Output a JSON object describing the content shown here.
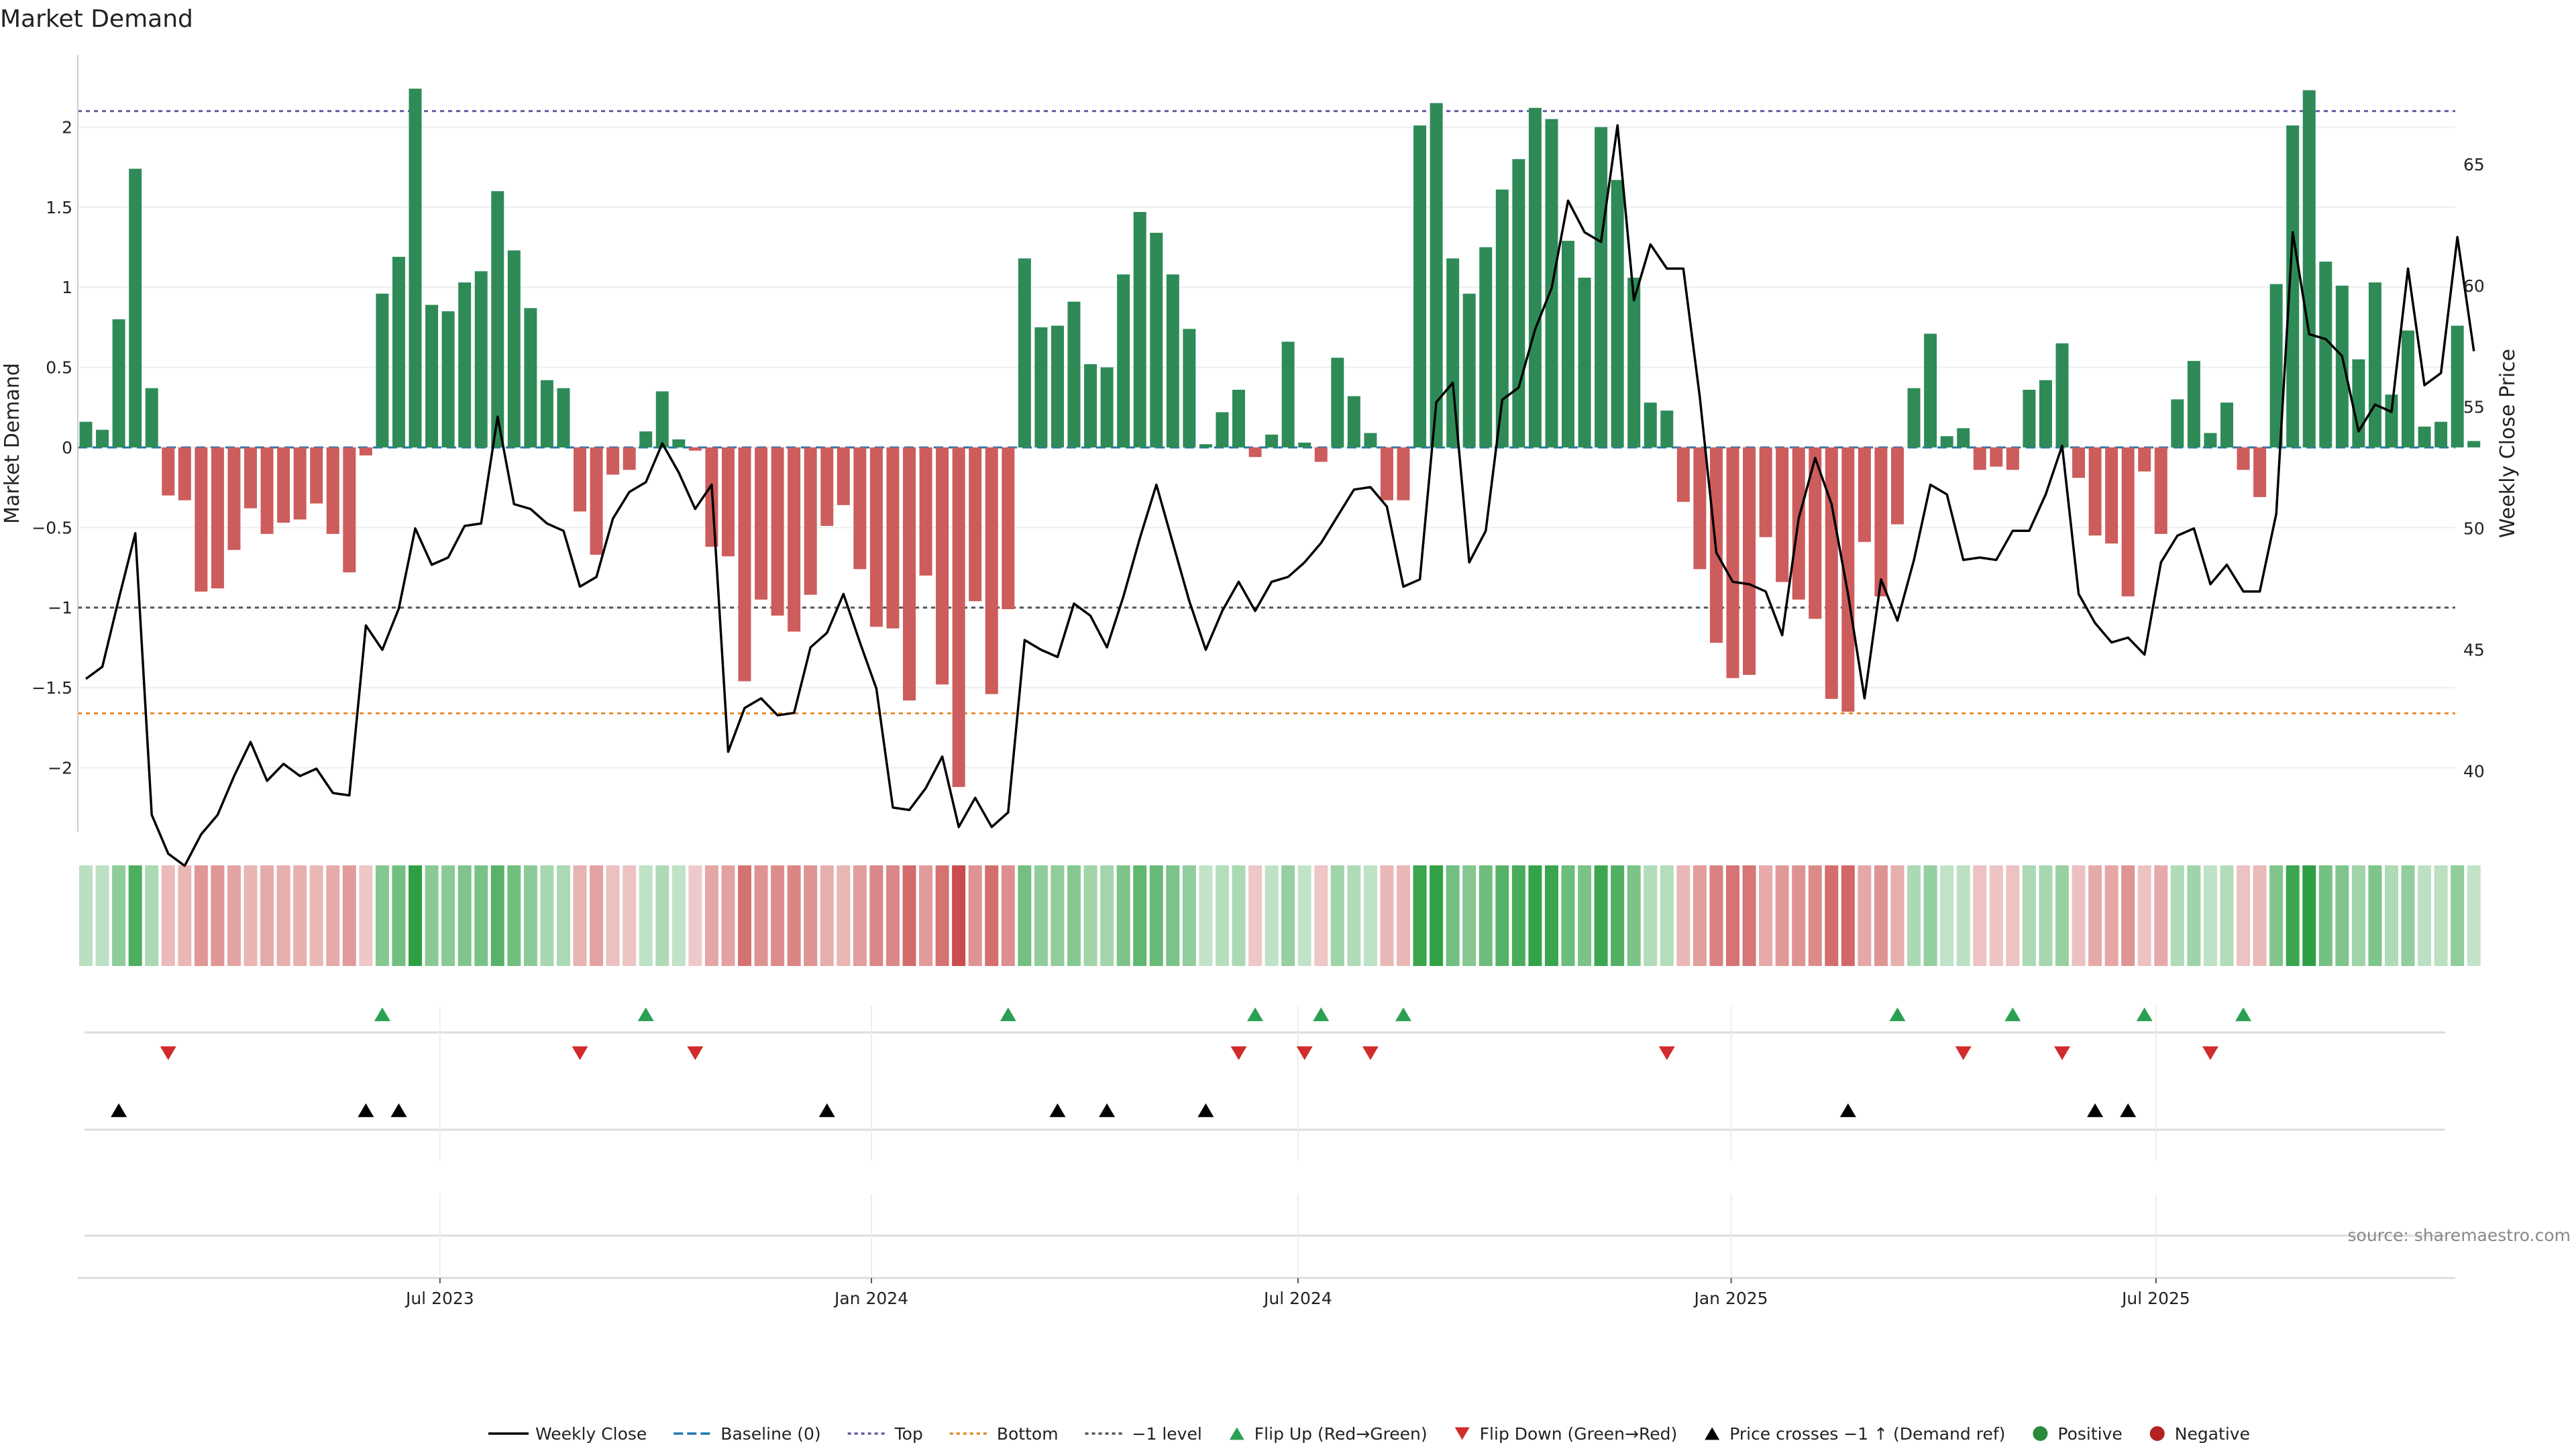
{
  "chart_data": {
    "type": "bar",
    "title": "Market Demand",
    "ylabel_left": "Market Demand",
    "ylabel_right": "Weekly Close Price",
    "source": "source: sharemaestro.com",
    "ylim_left": [
      -2.4,
      2.45
    ],
    "ylim_right": [
      37.5,
      69.5
    ],
    "yticks_left": [
      {
        "v": 2,
        "label": "2"
      },
      {
        "v": 1.5,
        "label": "1.5"
      },
      {
        "v": 1,
        "label": "1"
      },
      {
        "v": 0.5,
        "label": "0.5"
      },
      {
        "v": 0,
        "label": "0"
      },
      {
        "v": -0.5,
        "label": "−0.5"
      },
      {
        "v": -1,
        "label": "−1"
      },
      {
        "v": -1.5,
        "label": "−1.5"
      },
      {
        "v": -2,
        "label": "−2"
      }
    ],
    "yticks_right": [
      {
        "v": 65,
        "label": "65"
      },
      {
        "v": 60,
        "label": "60"
      },
      {
        "v": 55,
        "label": "55"
      },
      {
        "v": 50,
        "label": "50"
      },
      {
        "v": 45,
        "label": "45"
      },
      {
        "v": 40,
        "label": "40"
      }
    ],
    "xticks": [
      {
        "week": 21.5,
        "label": "Jul 2023"
      },
      {
        "week": 47.7,
        "label": "Jan 2024"
      },
      {
        "week": 73.6,
        "label": "Jul 2024"
      },
      {
        "week": 99.9,
        "label": "Jan 2025"
      },
      {
        "week": 125.7,
        "label": "Jul 2025"
      }
    ],
    "reference_lines": {
      "top": 2.1,
      "bottom": -1.66,
      "minus_one": -1.0,
      "baseline": 0
    },
    "demand": [
      0.16,
      0.11,
      0.8,
      1.74,
      0.37,
      -0.3,
      -0.33,
      -0.9,
      -0.88,
      -0.64,
      -0.38,
      -0.54,
      -0.47,
      -0.45,
      -0.35,
      -0.54,
      -0.78,
      -0.05,
      0.96,
      1.19,
      2.24,
      0.89,
      0.85,
      1.03,
      1.1,
      1.6,
      1.23,
      0.87,
      0.42,
      0.37,
      -0.4,
      -0.67,
      -0.17,
      -0.14,
      0.1,
      0.35,
      0.05,
      -0.02,
      -0.62,
      -0.68,
      -1.46,
      -0.95,
      -1.05,
      -1.15,
      -0.92,
      -0.49,
      -0.36,
      -0.76,
      -1.12,
      -1.13,
      -1.58,
      -0.8,
      -1.48,
      -2.12,
      -0.96,
      -1.54,
      -1.01,
      1.18,
      0.75,
      0.76,
      0.91,
      0.52,
      0.5,
      1.08,
      1.47,
      1.34,
      1.08,
      0.74,
      0.02,
      0.22,
      0.36,
      -0.06,
      0.08,
      0.66,
      0.03,
      -0.09,
      0.56,
      0.32,
      0.09,
      -0.33,
      -0.33,
      2.01,
      2.15,
      1.18,
      0.96,
      1.25,
      1.61,
      1.8,
      2.12,
      2.05,
      1.29,
      1.06,
      2.0,
      1.67,
      1.06,
      0.28,
      0.23,
      -0.34,
      -0.76,
      -1.22,
      -1.44,
      -1.42,
      -0.56,
      -0.84,
      -0.95,
      -1.07,
      -1.57,
      -1.65,
      -0.59,
      -0.93,
      -0.48,
      0.37,
      0.71,
      0.07,
      0.12,
      -0.14,
      -0.12,
      -0.14,
      0.36,
      0.42,
      0.65,
      -0.19,
      -0.55,
      -0.6,
      -0.93,
      -0.15,
      -0.54,
      0.3,
      0.54,
      0.09,
      0.28,
      -0.14,
      -0.31,
      1.02,
      2.01,
      2.23,
      1.16,
      1.01,
      0.55,
      1.03,
      0.33,
      0.73,
      0.13,
      0.16,
      0.76,
      0.04
    ],
    "series": [
      {
        "name": "Weekly Close",
        "values": [
          43.8,
          44.3,
          47.1,
          49.8,
          38.2,
          36.6,
          36.1,
          37.4,
          38.2,
          39.8,
          41.2,
          39.6,
          40.3,
          39.8,
          40.1,
          39.1,
          39.0,
          46.0,
          45.0,
          46.7,
          50.0,
          48.5,
          48.8,
          50.1,
          50.2,
          54.6,
          51.0,
          50.8,
          50.2,
          49.9,
          47.6,
          48.0,
          50.4,
          51.5,
          51.9,
          53.5,
          52.3,
          50.8,
          51.8,
          40.8,
          42.6,
          43.0,
          42.3,
          42.4,
          45.1,
          45.7,
          47.3,
          45.3,
          43.4,
          38.5,
          38.4,
          39.3,
          40.6,
          37.7,
          38.9,
          37.7,
          38.3,
          45.4,
          45.0,
          44.7,
          46.9,
          46.4,
          45.1,
          47.2,
          49.6,
          51.8,
          49.4,
          47.0,
          45.0,
          46.6,
          47.8,
          46.6,
          47.8,
          48.0,
          48.6,
          49.4,
          50.5,
          51.6,
          51.7,
          50.9,
          47.6,
          47.9,
          55.2,
          56.0,
          48.6,
          49.9,
          55.3,
          55.8,
          58.2,
          59.9,
          63.5,
          62.2,
          61.8,
          66.6,
          59.4,
          61.7,
          60.7,
          60.7,
          55.4,
          49.0,
          47.8,
          47.7,
          47.4,
          45.6,
          50.4,
          52.9,
          51.0,
          47.3,
          43.0,
          47.9,
          46.2,
          48.7,
          51.8,
          51.4,
          48.7,
          48.8,
          48.7,
          49.9,
          49.9,
          51.4,
          53.4,
          47.3,
          46.1,
          45.3,
          45.5,
          44.8,
          48.6,
          49.7,
          50.0,
          47.7,
          48.5,
          47.4,
          47.4,
          50.6,
          62.2,
          58.0,
          57.8,
          57.1,
          54.0,
          55.1,
          54.8,
          60.7,
          55.9,
          56.4,
          62.0,
          57.3
        ]
      },
      {
        "name": "Baseline (0)"
      }
    ],
    "flip_up_weeks": [
      18,
      34,
      56,
      71,
      75,
      80,
      110,
      117,
      125,
      131
    ],
    "flip_down_weeks": [
      5,
      30,
      37,
      70,
      74,
      78,
      96,
      114,
      120,
      129
    ],
    "price_cross_weeks": [
      2,
      17,
      19,
      45,
      59,
      62,
      68,
      107,
      122,
      124
    ],
    "legend": [
      {
        "label": "Weekly Close",
        "kind": "line-solid",
        "color": "#000000"
      },
      {
        "label": "Baseline (0)",
        "kind": "line-dash",
        "color": "#1f77b4"
      },
      {
        "label": "Top",
        "kind": "line-dot",
        "color": "#6a5aa8"
      },
      {
        "label": "Bottom",
        "kind": "line-dot",
        "color": "#e8892c"
      },
      {
        "label": "−1 level",
        "kind": "line-dot",
        "color": "#555555"
      },
      {
        "label": "Flip Up (Red→Green)",
        "kind": "tri-up",
        "color": "#2aa052"
      },
      {
        "label": "Flip Down (Green→Red)",
        "kind": "tri-down",
        "color": "#d22b2b"
      },
      {
        "label": "Price crosses −1 ↑ (Demand ref)",
        "kind": "tri-up",
        "color": "#000000"
      },
      {
        "label": "Positive",
        "kind": "dot",
        "color": "#2a8a3a"
      },
      {
        "label": "Negative",
        "kind": "dot",
        "color": "#b22222"
      }
    ],
    "colors": {
      "positive": "#2e8b57",
      "negative": "#cd5c5c",
      "price": "#000000",
      "top": "#6a5aa8",
      "bottom": "#e8892c",
      "minus_one": "#555555",
      "flip_up": "#2aa052",
      "flip_down": "#d22b2b",
      "cross": "#000000"
    }
  }
}
